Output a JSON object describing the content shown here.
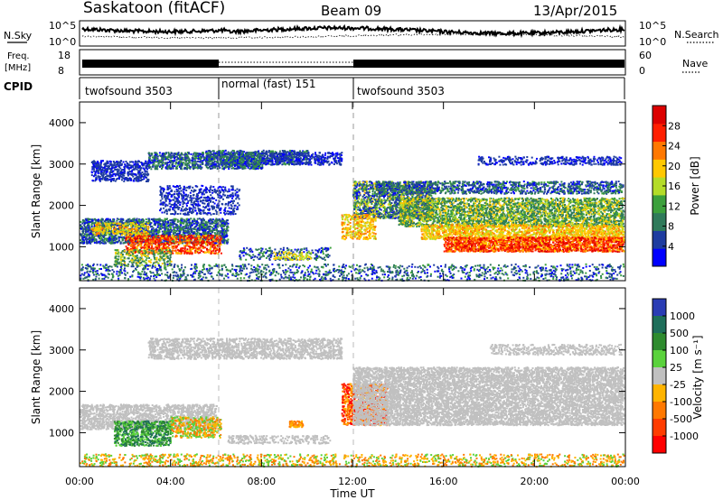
{
  "header": {
    "station": "Saskatoon (fitACF)",
    "beam": "Beam 09",
    "date": "13/Apr/2015"
  },
  "noise_panel": {
    "left_label": "N.Sky",
    "right_label": "N.Search",
    "left_ticks": [
      "10^5",
      "10^0"
    ],
    "right_ticks": [
      "10^5",
      "10^0"
    ]
  },
  "freq_panel": {
    "left_label_line1": "Freq.",
    "left_label_line2": "[MHz]",
    "right_label": "Nave",
    "left_ticks": [
      "18",
      "8"
    ],
    "right_ticks": [
      "60",
      "0"
    ]
  },
  "cpid_panel": {
    "label": "CPID",
    "modes": [
      {
        "name": "twofsound 3503"
      },
      {
        "name": "normal (fast) 151"
      },
      {
        "name": "twofsound 3503"
      }
    ]
  },
  "colors": {
    "power_scale": [
      "#0000ff",
      "#1e3ca0",
      "#2f7a5a",
      "#3ca03c",
      "#b4dc28",
      "#ffc800",
      "#ff7800",
      "#ff1e00",
      "#dc0000"
    ],
    "velocity_scale": [
      "#2a3cb4",
      "#1e6e5a",
      "#2e8b2e",
      "#5ad23c",
      "#c0c0c0",
      "#ffb400",
      "#ff7800",
      "#ff3c00",
      "#ff0000"
    ]
  },
  "chart_data": [
    {
      "type": "heatmap",
      "name": "power",
      "ylabel": "Slant Range [km]",
      "xlim": [
        "00:00",
        "24:00"
      ],
      "ylim": [
        180,
        4500
      ],
      "yticks": [
        1000,
        2000,
        3000,
        4000
      ],
      "colorbar_label": "Power [dB]",
      "colorbar_ticks": [
        4,
        8,
        12,
        16,
        20,
        24,
        28
      ],
      "colorbar_range": [
        0,
        32
      ]
    },
    {
      "type": "heatmap",
      "name": "velocity",
      "ylabel": "Slant Range [km]",
      "xlabel": "Time UT",
      "xticks": [
        "00:00",
        "04:00",
        "08:00",
        "12:00",
        "16:00",
        "20:00",
        "00:00"
      ],
      "xlim": [
        "00:00",
        "24:00"
      ],
      "ylim": [
        180,
        4500
      ],
      "yticks": [
        1000,
        2000,
        3000,
        4000
      ],
      "colorbar_label": "Velocity [m s⁻¹]",
      "colorbar_ticks": [
        "-1000",
        "-500",
        "-100",
        "-25",
        "25",
        "100",
        "500",
        "1000"
      ]
    }
  ]
}
